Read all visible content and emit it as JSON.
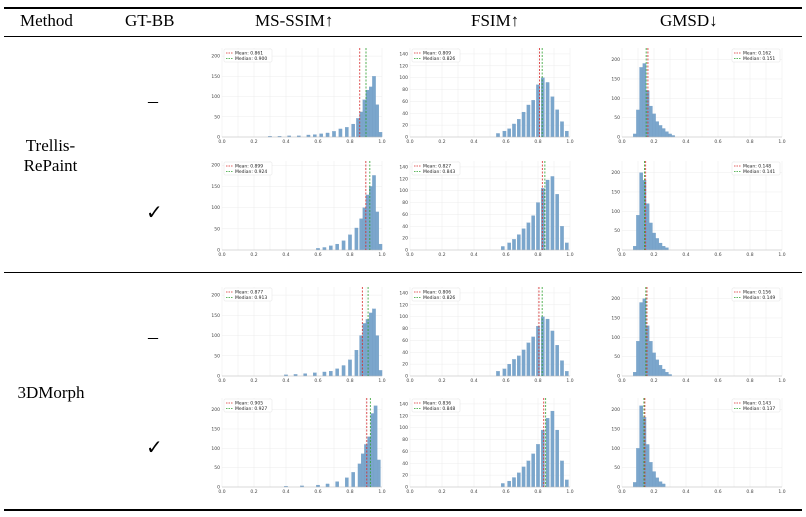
{
  "header": {
    "method": "Method",
    "gtbb": "GT-BB",
    "msssim": "MS-SSIM↑",
    "fsim": "FSIM↑",
    "gmsd": "GMSD↓"
  },
  "rows": [
    {
      "method": "Trellis-RePaint",
      "gtbb": [
        "–",
        "✓"
      ]
    },
    {
      "method": "3DMorph",
      "gtbb": [
        "–",
        "✓"
      ]
    }
  ],
  "colors": {
    "bar": "#7ba6cc",
    "mean": "#d62728",
    "median": "#2ca02c"
  },
  "chart_data": [
    {
      "type": "bar",
      "id": "trellis-nobb-msssim",
      "xlim": [
        0,
        1
      ],
      "yticks": [
        "0",
        "50",
        "100",
        "150",
        "200"
      ],
      "ymax": 220,
      "mean_label": "Mean: 0.861",
      "median_label": "Median: 0.900",
      "mean": 0.861,
      "median": 0.9,
      "bins": [
        [
          0.3,
          2
        ],
        [
          0.36,
          2
        ],
        [
          0.42,
          3
        ],
        [
          0.48,
          3
        ],
        [
          0.54,
          5
        ],
        [
          0.58,
          6
        ],
        [
          0.62,
          8
        ],
        [
          0.66,
          10
        ],
        [
          0.7,
          14
        ],
        [
          0.74,
          20
        ],
        [
          0.78,
          24
        ],
        [
          0.82,
          32
        ],
        [
          0.85,
          46
        ],
        [
          0.87,
          62
        ],
        [
          0.89,
          92
        ],
        [
          0.91,
          116
        ],
        [
          0.93,
          124
        ],
        [
          0.95,
          150
        ],
        [
          0.97,
          80
        ],
        [
          0.99,
          12
        ]
      ]
    },
    {
      "type": "bar",
      "id": "trellis-nobb-fsim",
      "xlim": [
        0,
        1
      ],
      "yticks": [
        "0",
        "20",
        "40",
        "60",
        "80",
        "100",
        "120",
        "140"
      ],
      "ymax": 150,
      "mean_label": "Mean: 0.809",
      "median_label": "Median: 0.826",
      "mean": 0.809,
      "median": 0.826,
      "bins": [
        [
          0.55,
          6
        ],
        [
          0.59,
          10
        ],
        [
          0.62,
          14
        ],
        [
          0.65,
          22
        ],
        [
          0.68,
          30
        ],
        [
          0.71,
          42
        ],
        [
          0.74,
          54
        ],
        [
          0.77,
          62
        ],
        [
          0.8,
          88
        ],
        [
          0.83,
          100
        ],
        [
          0.86,
          92
        ],
        [
          0.89,
          68
        ],
        [
          0.92,
          46
        ],
        [
          0.95,
          26
        ],
        [
          0.98,
          10
        ]
      ]
    },
    {
      "type": "bar",
      "id": "trellis-nobb-gmsd",
      "xlim": [
        0,
        1
      ],
      "yticks": [
        "0",
        "50",
        "100",
        "150",
        "200"
      ],
      "ymax": 230,
      "mean_label": "Mean: 0.162",
      "median_label": "Median: 0.151",
      "mean": 0.162,
      "median": 0.151,
      "bins": [
        [
          0.08,
          8
        ],
        [
          0.1,
          70
        ],
        [
          0.12,
          180
        ],
        [
          0.14,
          190
        ],
        [
          0.16,
          120
        ],
        [
          0.18,
          80
        ],
        [
          0.2,
          60
        ],
        [
          0.22,
          40
        ],
        [
          0.24,
          30
        ],
        [
          0.26,
          22
        ],
        [
          0.28,
          14
        ],
        [
          0.3,
          8
        ],
        [
          0.32,
          4
        ]
      ]
    },
    {
      "type": "bar",
      "id": "trellis-bb-msssim",
      "xlim": [
        0,
        1
      ],
      "yticks": [
        "0",
        "50",
        "100",
        "150",
        "200"
      ],
      "ymax": 210,
      "mean_label": "Mean: 0.899",
      "median_label": "Median: 0.924",
      "mean": 0.899,
      "median": 0.924,
      "bins": [
        [
          0.6,
          4
        ],
        [
          0.64,
          6
        ],
        [
          0.68,
          10
        ],
        [
          0.72,
          14
        ],
        [
          0.76,
          22
        ],
        [
          0.8,
          36
        ],
        [
          0.84,
          52
        ],
        [
          0.87,
          74
        ],
        [
          0.89,
          100
        ],
        [
          0.91,
          130
        ],
        [
          0.93,
          150
        ],
        [
          0.95,
          176
        ],
        [
          0.97,
          90
        ],
        [
          0.99,
          14
        ]
      ]
    },
    {
      "type": "bar",
      "id": "trellis-bb-fsim",
      "xlim": [
        0,
        1
      ],
      "yticks": [
        "0",
        "20",
        "40",
        "60",
        "80",
        "100",
        "120",
        "140"
      ],
      "ymax": 150,
      "mean_label": "Mean: 0.827",
      "median_label": "Median: 0.843",
      "mean": 0.827,
      "median": 0.843,
      "bins": [
        [
          0.58,
          6
        ],
        [
          0.62,
          12
        ],
        [
          0.65,
          18
        ],
        [
          0.68,
          26
        ],
        [
          0.71,
          36
        ],
        [
          0.74,
          46
        ],
        [
          0.77,
          58
        ],
        [
          0.8,
          80
        ],
        [
          0.83,
          104
        ],
        [
          0.86,
          118
        ],
        [
          0.89,
          124
        ],
        [
          0.92,
          94
        ],
        [
          0.95,
          40
        ],
        [
          0.98,
          12
        ]
      ]
    },
    {
      "type": "bar",
      "id": "trellis-bb-gmsd",
      "xlim": [
        0,
        1
      ],
      "yticks": [
        "0",
        "50",
        "100",
        "150",
        "200"
      ],
      "ymax": 230,
      "mean_label": "Mean: 0.148",
      "median_label": "Median: 0.141",
      "mean": 0.148,
      "median": 0.141,
      "bins": [
        [
          0.08,
          10
        ],
        [
          0.1,
          90
        ],
        [
          0.12,
          200
        ],
        [
          0.14,
          180
        ],
        [
          0.16,
          120
        ],
        [
          0.18,
          70
        ],
        [
          0.2,
          44
        ],
        [
          0.22,
          30
        ],
        [
          0.24,
          18
        ],
        [
          0.26,
          10
        ],
        [
          0.28,
          6
        ]
      ]
    },
    {
      "type": "bar",
      "id": "3dmorph-nobb-msssim",
      "xlim": [
        0,
        1
      ],
      "yticks": [
        "0",
        "50",
        "100",
        "150",
        "200"
      ],
      "ymax": 220,
      "mean_label": "Mean: 0.877",
      "median_label": "Median: 0.913",
      "mean": 0.877,
      "median": 0.913,
      "bins": [
        [
          0.4,
          3
        ],
        [
          0.46,
          4
        ],
        [
          0.52,
          6
        ],
        [
          0.58,
          8
        ],
        [
          0.64,
          10
        ],
        [
          0.68,
          12
        ],
        [
          0.72,
          18
        ],
        [
          0.76,
          26
        ],
        [
          0.8,
          40
        ],
        [
          0.84,
          64
        ],
        [
          0.87,
          100
        ],
        [
          0.89,
          130
        ],
        [
          0.91,
          140
        ],
        [
          0.93,
          156
        ],
        [
          0.95,
          166
        ],
        [
          0.97,
          100
        ],
        [
          0.99,
          14
        ]
      ]
    },
    {
      "type": "bar",
      "id": "3dmorph-nobb-fsim",
      "xlim": [
        0,
        1
      ],
      "yticks": [
        "0",
        "20",
        "40",
        "60",
        "80",
        "100",
        "120",
        "140"
      ],
      "ymax": 150,
      "mean_label": "Mean: 0.806",
      "median_label": "Median: 0.826",
      "mean": 0.806,
      "median": 0.826,
      "bins": [
        [
          0.55,
          8
        ],
        [
          0.59,
          12
        ],
        [
          0.62,
          20
        ],
        [
          0.65,
          28
        ],
        [
          0.68,
          34
        ],
        [
          0.71,
          44
        ],
        [
          0.74,
          56
        ],
        [
          0.77,
          66
        ],
        [
          0.8,
          84
        ],
        [
          0.83,
          100
        ],
        [
          0.86,
          96
        ],
        [
          0.89,
          76
        ],
        [
          0.92,
          52
        ],
        [
          0.95,
          26
        ],
        [
          0.98,
          8
        ]
      ]
    },
    {
      "type": "bar",
      "id": "3dmorph-nobb-gmsd",
      "xlim": [
        0,
        1
      ],
      "yticks": [
        "0",
        "50",
        "100",
        "150",
        "200"
      ],
      "ymax": 230,
      "mean_label": "Mean: 0.156",
      "median_label": "Median: 0.149",
      "mean": 0.156,
      "median": 0.149,
      "bins": [
        [
          0.08,
          10
        ],
        [
          0.1,
          90
        ],
        [
          0.12,
          190
        ],
        [
          0.14,
          200
        ],
        [
          0.16,
          130
        ],
        [
          0.18,
          90
        ],
        [
          0.2,
          60
        ],
        [
          0.22,
          42
        ],
        [
          0.24,
          28
        ],
        [
          0.26,
          18
        ],
        [
          0.28,
          10
        ],
        [
          0.3,
          4
        ]
      ]
    },
    {
      "type": "bar",
      "id": "3dmorph-bb-msssim",
      "xlim": [
        0,
        1
      ],
      "yticks": [
        "0",
        "50",
        "100",
        "150",
        "200"
      ],
      "ymax": 230,
      "mean_label": "Mean: 0.905",
      "median_label": "Median: 0.927",
      "mean": 0.905,
      "median": 0.927,
      "bins": [
        [
          0.4,
          2
        ],
        [
          0.5,
          3
        ],
        [
          0.6,
          5
        ],
        [
          0.66,
          8
        ],
        [
          0.72,
          14
        ],
        [
          0.78,
          24
        ],
        [
          0.82,
          38
        ],
        [
          0.86,
          60
        ],
        [
          0.88,
          86
        ],
        [
          0.9,
          110
        ],
        [
          0.92,
          130
        ],
        [
          0.94,
          190
        ],
        [
          0.96,
          210
        ],
        [
          0.98,
          70
        ]
      ]
    },
    {
      "type": "bar",
      "id": "3dmorph-bb-fsim",
      "xlim": [
        0,
        1
      ],
      "yticks": [
        "0",
        "20",
        "40",
        "60",
        "80",
        "100",
        "120",
        "140"
      ],
      "ymax": 150,
      "mean_label": "Mean: 0.836",
      "median_label": "Median: 0.848",
      "mean": 0.836,
      "median": 0.848,
      "bins": [
        [
          0.58,
          6
        ],
        [
          0.62,
          10
        ],
        [
          0.65,
          16
        ],
        [
          0.68,
          24
        ],
        [
          0.71,
          34
        ],
        [
          0.74,
          44
        ],
        [
          0.77,
          56
        ],
        [
          0.8,
          72
        ],
        [
          0.83,
          96
        ],
        [
          0.86,
          116
        ],
        [
          0.89,
          128
        ],
        [
          0.92,
          96
        ],
        [
          0.95,
          44
        ],
        [
          0.98,
          12
        ]
      ]
    },
    {
      "type": "bar",
      "id": "3dmorph-bb-gmsd",
      "xlim": [
        0,
        1
      ],
      "yticks": [
        "0",
        "50",
        "100",
        "150",
        "200"
      ],
      "ymax": 230,
      "mean_label": "Mean: 0.143",
      "median_label": "Median: 0.137",
      "mean": 0.143,
      "median": 0.137,
      "bins": [
        [
          0.08,
          12
        ],
        [
          0.1,
          100
        ],
        [
          0.12,
          210
        ],
        [
          0.14,
          180
        ],
        [
          0.16,
          110
        ],
        [
          0.18,
          64
        ],
        [
          0.2,
          40
        ],
        [
          0.22,
          24
        ],
        [
          0.24,
          14
        ],
        [
          0.26,
          8
        ]
      ]
    }
  ]
}
